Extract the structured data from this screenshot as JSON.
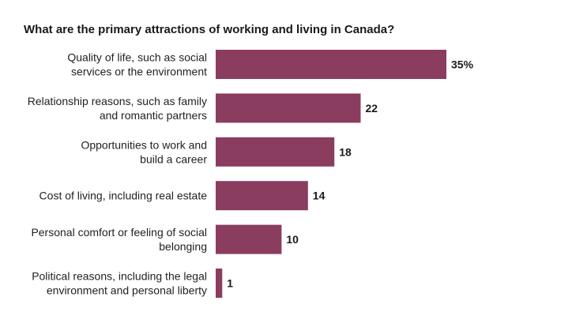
{
  "chart_data": {
    "type": "bar",
    "orientation": "horizontal",
    "title": "What are the primary attractions of working and living in Canada?",
    "categories": [
      [
        "Quality of life, such as social",
        "services or the environment"
      ],
      [
        "Relationship reasons, such as family",
        "and romantic partners"
      ],
      [
        "Opportunities to work and",
        "build a career"
      ],
      [
        "Cost of living, including real estate"
      ],
      [
        "Personal comfort or feeling of social",
        "belonging"
      ],
      [
        "Political reasons, including the legal",
        "environment and personal liberty"
      ]
    ],
    "values": [
      35,
      22,
      18,
      14,
      10,
      1
    ],
    "data_labels": [
      "35%",
      "22",
      "18",
      "14",
      "10",
      "1"
    ],
    "unit": "%",
    "xlim": [
      0,
      35
    ],
    "grid": false,
    "legend": "none",
    "bar_color": "#8a3d5f"
  }
}
